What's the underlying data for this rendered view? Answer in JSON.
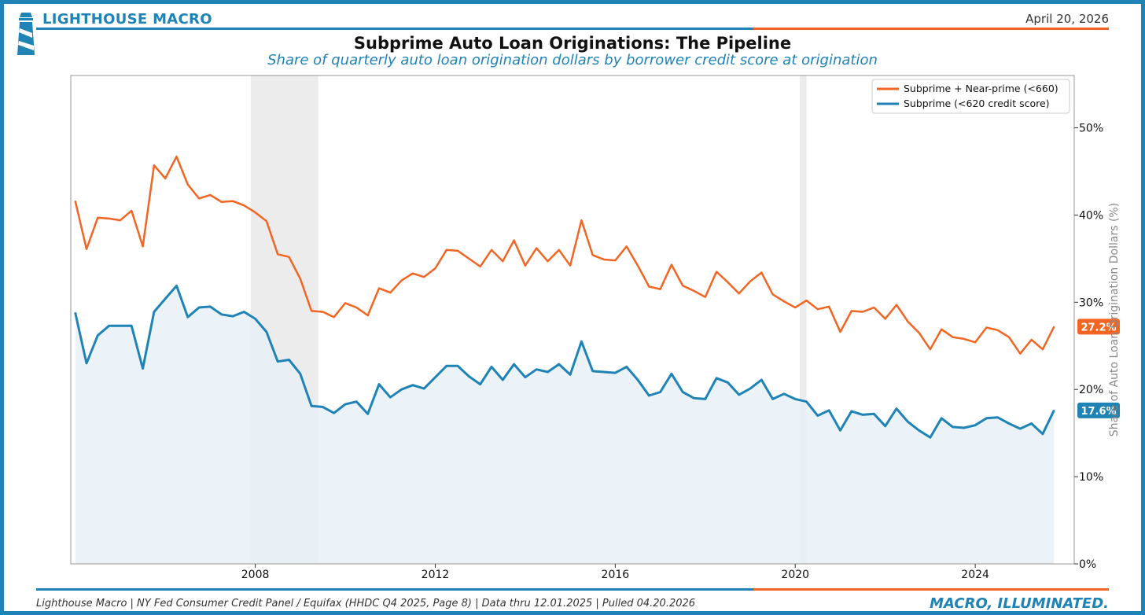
{
  "header": {
    "brand": "LIGHTHOUSE MACRO",
    "date": "April 20, 2026"
  },
  "footer": {
    "source": "Lighthouse Macro | NY Fed Consumer Credit Panel / Equifax (HHDC Q4 2025, Page 8) | Data thru 12.01.2025 | Pulled 04.20.2026",
    "tagline": "MACRO, ILLUMINATED."
  },
  "colors": {
    "orange": "#f26522",
    "blue": "#1f83b6",
    "fill": "#e8f1f7",
    "recession": "#e0e0e0"
  },
  "chart_data": {
    "type": "line",
    "title": "Subprime Auto Loan Originations: The Pipeline",
    "subtitle": "Share of quarterly auto loan origination dollars by borrower credit score at origination",
    "ylabel": "Share of Auto Loan Origination Dollars (%)",
    "ylim": [
      0,
      56
    ],
    "xlim": [
      2003.9,
      2026.2
    ],
    "x_start": 2004.0,
    "x_step": 0.25,
    "x_ticks": [
      {
        "value": 2008,
        "label": "2008"
      },
      {
        "value": 2012,
        "label": "2012"
      },
      {
        "value": 2016,
        "label": "2016"
      },
      {
        "value": 2020,
        "label": "2020"
      },
      {
        "value": 2024,
        "label": "2024"
      }
    ],
    "y_ticks": [
      {
        "value": 0,
        "label": "0%"
      },
      {
        "value": 10,
        "label": "10%"
      },
      {
        "value": 20,
        "label": "20%"
      },
      {
        "value": 30,
        "label": "30%"
      },
      {
        "value": 40,
        "label": "40%"
      },
      {
        "value": 50,
        "label": "50%"
      }
    ],
    "recessions": [
      [
        2007.9,
        2009.4
      ],
      [
        2020.1,
        2020.25
      ]
    ],
    "legend_position": "top-right",
    "series": [
      {
        "name": "Subprime + Near-prime (<660)",
        "color": "#f26522",
        "end_label": "27.2%",
        "values": [
          41.6,
          36.1,
          39.7,
          39.6,
          39.4,
          40.5,
          36.4,
          45.7,
          44.2,
          46.7,
          43.5,
          41.9,
          42.3,
          41.5,
          41.6,
          41.1,
          40.3,
          39.3,
          35.5,
          35.2,
          32.7,
          29.0,
          28.9,
          28.3,
          29.9,
          29.4,
          28.5,
          31.6,
          31.1,
          32.5,
          33.3,
          32.9,
          33.9,
          36.0,
          35.9,
          35.0,
          34.1,
          36.0,
          34.7,
          37.1,
          34.2,
          36.2,
          34.7,
          36.0,
          34.2,
          39.4,
          35.4,
          34.9,
          34.8,
          36.4,
          34.2,
          31.8,
          31.5,
          34.3,
          31.9,
          31.3,
          30.6,
          33.5,
          32.3,
          31.0,
          32.4,
          33.4,
          30.9,
          30.1,
          29.4,
          30.2,
          29.2,
          29.5,
          26.6,
          29.0,
          28.9,
          29.4,
          28.1,
          29.7,
          27.8,
          26.5,
          24.6,
          26.9,
          26.0,
          25.8,
          25.4,
          27.1,
          26.8,
          26.0,
          24.1,
          25.7,
          24.6,
          27.2
        ]
      },
      {
        "name": "Subprime (<620 credit score)",
        "color": "#1f83b6",
        "end_label": "17.6%",
        "values": [
          28.8,
          23.0,
          26.2,
          27.3,
          27.3,
          27.3,
          22.4,
          28.9,
          30.4,
          31.9,
          28.3,
          29.4,
          29.5,
          28.6,
          28.4,
          28.9,
          28.1,
          26.6,
          23.2,
          23.4,
          21.8,
          18.1,
          18.0,
          17.3,
          18.3,
          18.6,
          17.2,
          20.6,
          19.1,
          20.0,
          20.5,
          20.1,
          21.4,
          22.7,
          22.7,
          21.5,
          20.6,
          22.6,
          21.1,
          22.9,
          21.4,
          22.3,
          22.0,
          22.9,
          21.7,
          25.5,
          22.1,
          22.0,
          21.9,
          22.6,
          21.1,
          19.3,
          19.7,
          21.8,
          19.7,
          19.0,
          18.9,
          21.3,
          20.8,
          19.4,
          20.1,
          21.1,
          18.9,
          19.5,
          18.9,
          18.6,
          17.0,
          17.6,
          15.3,
          17.5,
          17.1,
          17.2,
          15.8,
          17.8,
          16.3,
          15.3,
          14.5,
          16.7,
          15.7,
          15.6,
          15.9,
          16.7,
          16.8,
          16.1,
          15.5,
          16.1,
          14.9,
          17.6
        ]
      }
    ]
  }
}
